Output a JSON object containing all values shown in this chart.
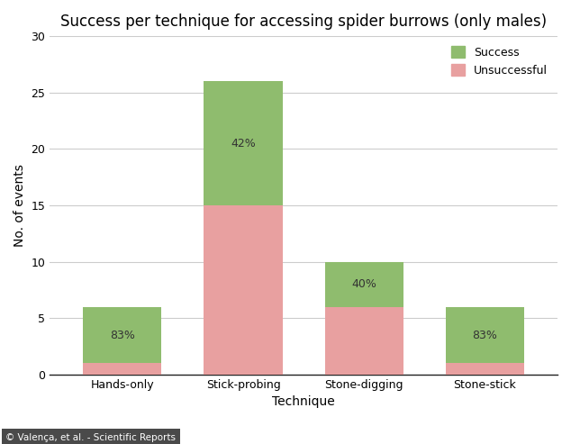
{
  "title": "Success per technique for accessing spider burrows (only males)",
  "xlabel": "Technique",
  "ylabel": "No. of events",
  "categories": [
    "Hands-only",
    "Stick-probing",
    "Stone-digging",
    "Stone-stick"
  ],
  "unsuccessful": [
    1,
    15,
    6,
    1
  ],
  "success": [
    5,
    11,
    4,
    5
  ],
  "success_pct_labels": [
    "83%",
    "42%",
    "40%",
    "83%"
  ],
  "color_success": "#8fbc6e",
  "color_unsuccessful": "#e8a0a0",
  "ylim": [
    0,
    30
  ],
  "yticks": [
    0,
    5,
    10,
    15,
    20,
    25,
    30
  ],
  "title_fontsize": 12,
  "axis_label_fontsize": 10,
  "tick_fontsize": 9,
  "legend_fontsize": 9,
  "caption": "© Valença, et al. - Scientific Reports",
  "background_color": "#ffffff",
  "bar_width": 0.65,
  "grid_color": "#cccccc",
  "caption_bg": "#4a4a4a"
}
